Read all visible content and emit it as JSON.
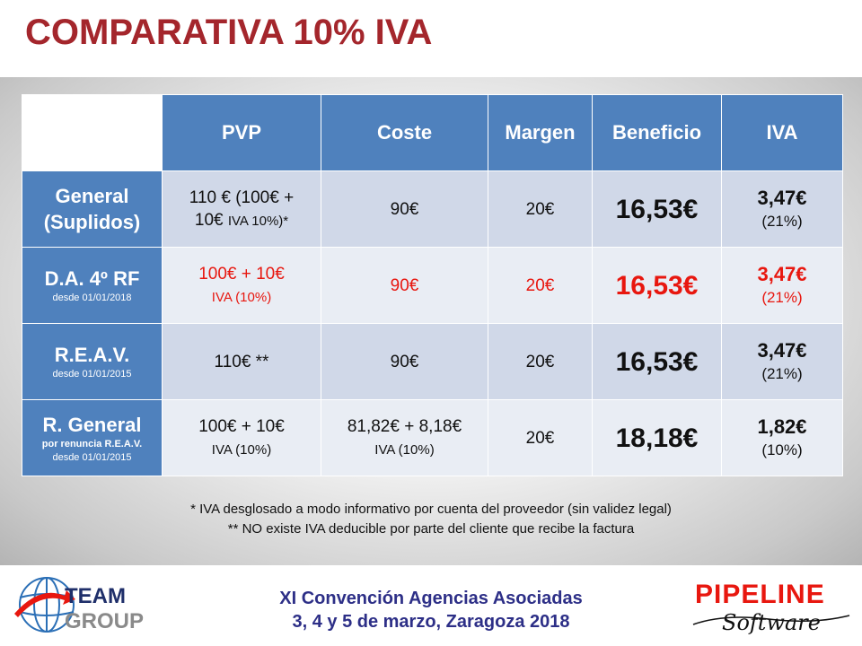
{
  "title": "COMPARATIVA 10% IVA",
  "table": {
    "headers": [
      "PVP",
      "Coste",
      "Margen",
      "Beneficio",
      "IVA"
    ],
    "rows": [
      {
        "label": "General",
        "label2": "(Suplidos)",
        "pvp_line1": "110 € (100€ +",
        "pvp_line2a": "10€ ",
        "pvp_line2b": "IVA 10%)*",
        "coste": "90€",
        "margen": "20€",
        "beneficio": "16,53€",
        "iva_value": "3,47€",
        "iva_pct": "(21%)"
      },
      {
        "label": "D.A. 4º RF",
        "sub": "desde 01/01/2018",
        "pvp_line1": "100€ + 10€",
        "pvp_line2": "IVA (10%)",
        "coste": "90€",
        "margen": "20€",
        "beneficio": "16,53€",
        "iva_value": "3,47€",
        "iva_pct": "(21%)"
      },
      {
        "label": "R.E.A.V.",
        "sub": "desde 01/01/2015",
        "pvp": "110€ **",
        "coste": "90€",
        "margen": "20€",
        "beneficio": "16,53€",
        "iva_value": "3,47€",
        "iva_pct": "(21%)"
      },
      {
        "label": "R. General",
        "sub_bold": "por renuncia R.E.A.V.",
        "sub": "desde 01/01/2015",
        "pvp_line1": "100€ + 10€",
        "pvp_line2": "IVA (10%)",
        "coste_line1": "81,82€ + 8,18€",
        "coste_line2": "IVA (10%)",
        "margen": "20€",
        "beneficio": "18,18€",
        "iva_value": "1,82€",
        "iva_pct": "(10%)"
      }
    ]
  },
  "notes": [
    "* IVA desglosado a modo informativo por cuenta del proveedor (sin validez legal)",
    "** NO existe IVA deducible por parte del cliente que recibe la factura"
  ],
  "footer": {
    "line1": "XI Convención Agencias Asociadas",
    "line2": "3, 4 y 5 de marzo, Zaragoza 2018"
  },
  "logos": {
    "team_line1": "TEAM",
    "team_line2": "GROUP",
    "pipeline": "PIPELINE",
    "software": "Software"
  },
  "colors": {
    "title": "#a4262c",
    "header_blue": "#4f81bd",
    "highlight_red": "#e8170f",
    "footer_navy": "#2d2f87"
  }
}
